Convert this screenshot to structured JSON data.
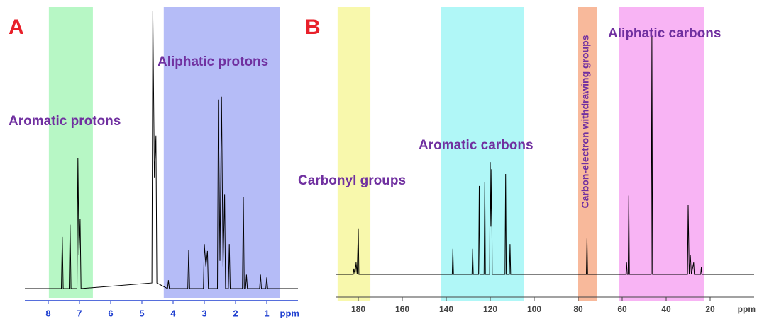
{
  "chart_data": [
    {
      "type": "line",
      "panel_label": "A",
      "xlabel": "ppm",
      "color": "#000000",
      "xlim": [
        8.75,
        0
      ],
      "xticks": [
        8,
        7,
        6,
        5,
        4,
        3,
        2,
        1
      ],
      "ylim": [
        0,
        100
      ],
      "regions": [
        {
          "label": "Aromatic protons",
          "from": 7.98,
          "to": 6.57,
          "color": "#b3f7c2"
        },
        {
          "label": "Aliphatic protons",
          "from": 4.3,
          "to": 0.57,
          "color": "#b1b8f7"
        }
      ],
      "x": [
        8.75,
        7.58,
        7.55,
        7.52,
        7.33,
        7.3,
        7.27,
        7.08,
        7.05,
        7.015,
        6.98,
        6.95,
        4.68,
        4.65,
        4.6,
        4.55,
        4.52,
        4.18,
        4.15,
        4.12,
        3.53,
        3.5,
        3.47,
        3.03,
        3.0,
        2.95,
        2.9,
        2.87,
        2.58,
        2.55,
        2.5,
        2.45,
        2.4,
        2.35,
        2.32,
        2.23,
        2.2,
        2.17,
        1.78,
        1.75,
        1.72,
        1.68,
        1.65,
        1.62,
        1.23,
        1.2,
        1.17,
        1.03,
        1.0,
        0.97,
        0
      ],
      "values": [
        0,
        0,
        18.6,
        0,
        0,
        23,
        0,
        0,
        47,
        12,
        25,
        0,
        2,
        100,
        40,
        55,
        2,
        0,
        3,
        0,
        0,
        14,
        0,
        0,
        16,
        8,
        13.5,
        0,
        0,
        68,
        10,
        69,
        8,
        34,
        0,
        0,
        16,
        0,
        0,
        33,
        0,
        0,
        5,
        0,
        0,
        5,
        0,
        0,
        4,
        0,
        0
      ]
    },
    {
      "type": "line",
      "panel_label": "B",
      "xlabel": "ppm",
      "color": "#000000",
      "xlim": [
        190,
        0
      ],
      "xticks": [
        180,
        160,
        140,
        120,
        100,
        80,
        60,
        40,
        20
      ],
      "ylim": [
        0,
        100
      ],
      "regions": [
        {
          "label": "Carbonyl groups",
          "from": 189.4,
          "to": 174.5,
          "color": "#f8f8a8"
        },
        {
          "label": "Aromatic carbons",
          "from": 142.3,
          "to": 104.8,
          "color": "#acf7f7"
        },
        {
          "label": "Carbon-electron withdrawing groups",
          "from": 80.3,
          "to": 71.3,
          "color": "#f8b596"
        },
        {
          "label": "Aliphatic carbons",
          "from": 61.3,
          "to": 22.6,
          "color": "#f8b0f3"
        }
      ],
      "x": [
        190,
        182.3,
        182,
        181.5,
        181,
        180.5,
        180,
        179.7,
        137.3,
        137,
        136.7,
        128.3,
        128,
        127.7,
        125.3,
        125,
        124.7,
        122.8,
        122.5,
        122.2,
        120.3,
        120,
        119.7,
        119.4,
        119.1,
        113.3,
        113,
        112.7,
        111.3,
        111,
        110.7,
        76.3,
        76,
        75.7,
        58.3,
        58,
        57.7,
        57.3,
        57,
        56.7,
        46.8,
        46.5,
        46.2,
        30.3,
        30,
        29.5,
        29,
        28.5,
        27.5,
        27.2,
        24.3,
        24,
        23.7,
        0
      ],
      "values": [
        0,
        0,
        2.4,
        0,
        5,
        0,
        19,
        0,
        0,
        10.7,
        0,
        0,
        10.7,
        0,
        0,
        37,
        0,
        0,
        38.5,
        0,
        0,
        47,
        20,
        44,
        0,
        0,
        42,
        0,
        0,
        12.7,
        0,
        0,
        15,
        0,
        0,
        5,
        0,
        0,
        33,
        0,
        0,
        100,
        0,
        0,
        29,
        0,
        8,
        0,
        5,
        0,
        0,
        3,
        0,
        0
      ]
    }
  ]
}
